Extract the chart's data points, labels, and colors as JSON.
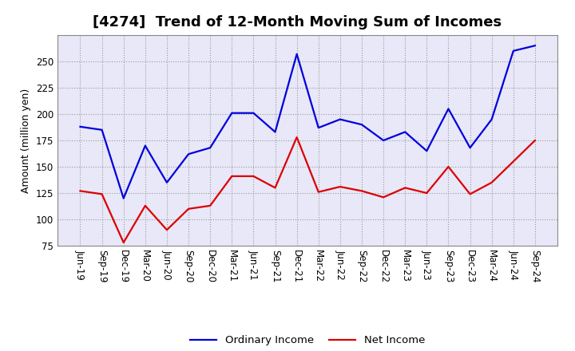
{
  "title": "[4274]  Trend of 12-Month Moving Sum of Incomes",
  "ylabel": "Amount (million yen)",
  "ylim": [
    75,
    275
  ],
  "yticks": [
    75,
    100,
    125,
    150,
    175,
    200,
    225,
    250
  ],
  "background_color": "#ffffff",
  "plot_bg_color": "#e8e8f8",
  "grid_color": "#999999",
  "x_labels": [
    "Jun-19",
    "Sep-19",
    "Dec-19",
    "Mar-20",
    "Jun-20",
    "Sep-20",
    "Dec-20",
    "Mar-21",
    "Jun-21",
    "Sep-21",
    "Dec-21",
    "Mar-22",
    "Jun-22",
    "Sep-22",
    "Dec-22",
    "Mar-23",
    "Jun-23",
    "Sep-23",
    "Dec-23",
    "Mar-24",
    "Jun-24",
    "Sep-24"
  ],
  "ordinary_income": [
    188,
    185,
    120,
    170,
    135,
    162,
    168,
    201,
    201,
    183,
    257,
    187,
    195,
    190,
    175,
    183,
    165,
    205,
    168,
    195,
    260,
    265
  ],
  "net_income": [
    127,
    124,
    78,
    113,
    90,
    110,
    113,
    141,
    141,
    130,
    178,
    126,
    131,
    127,
    121,
    130,
    125,
    150,
    124,
    135,
    155,
    175
  ],
  "ordinary_color": "#0000dd",
  "net_color": "#dd0000",
  "legend_labels": [
    "Ordinary Income",
    "Net Income"
  ],
  "title_fontsize": 13,
  "axis_fontsize": 9,
  "tick_fontsize": 8.5
}
